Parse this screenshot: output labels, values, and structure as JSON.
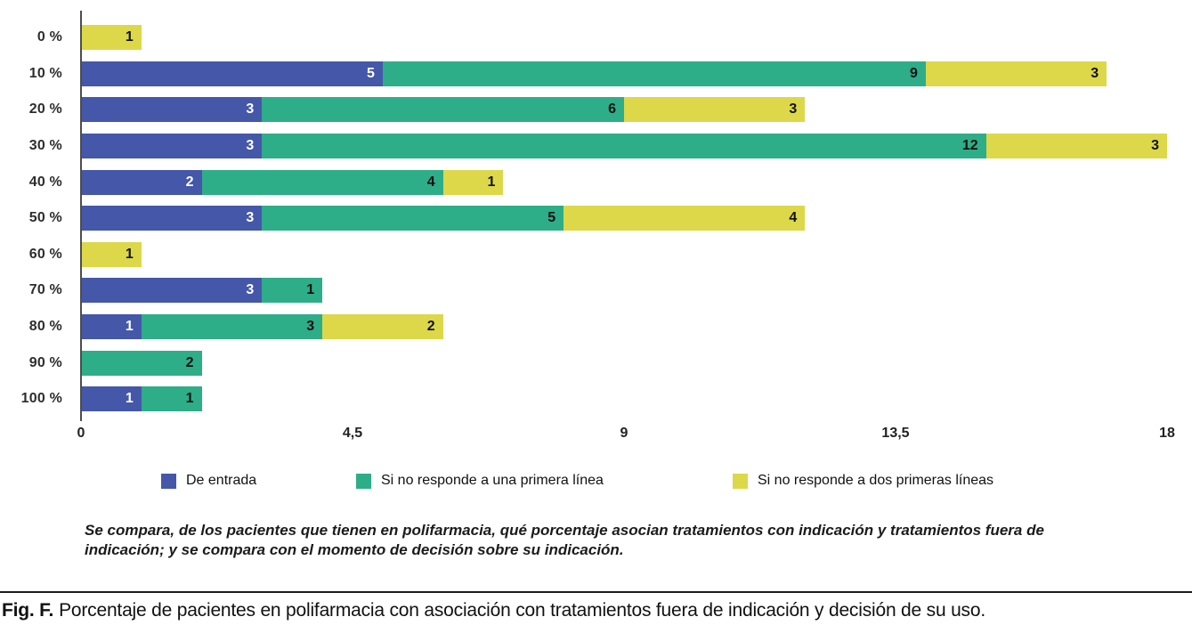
{
  "chart_data": {
    "type": "bar",
    "orientation": "horizontal",
    "stacked": true,
    "title": "",
    "xlabel": "",
    "ylabel": "",
    "categories": [
      "0 %",
      "10 %",
      "20 %",
      "30 %",
      "40 %",
      "50 %",
      "60 %",
      "70 %",
      "80 %",
      "90 %",
      "100 %"
    ],
    "series": [
      {
        "name": "De entrada",
        "color": "#4557a9",
        "label_color": "#ffffff",
        "values": [
          0,
          5,
          3,
          3,
          2,
          3,
          0,
          3,
          1,
          0,
          1
        ]
      },
      {
        "name": "Si no responde a una primera línea",
        "color": "#2ead89",
        "label_color": "#10100e",
        "values": [
          0,
          9,
          6,
          12,
          4,
          5,
          0,
          1,
          3,
          2,
          1
        ]
      },
      {
        "name": "Si no responde a dos primeras líneas",
        "color": "#dcd84a",
        "label_color": "#10100e",
        "values": [
          1,
          3,
          3,
          3,
          1,
          4,
          1,
          0,
          2,
          0,
          0
        ]
      }
    ],
    "x_ticks": [
      "0",
      "4,5",
      "9",
      "13,5",
      "18"
    ],
    "x_tick_values": [
      0,
      4.5,
      9,
      13.5,
      18
    ],
    "xlim": [
      0,
      18
    ],
    "grid": false,
    "legend_position": "bottom"
  },
  "footnote": "Se compara, de los pacientes que tienen en polifarmacia, qué porcentaje asocian tratamientos con indicación y tratamientos fuera de indicación; y se compara con el momento de decisión sobre su indicación.",
  "caption": {
    "prefix": "Fig. F.",
    "text": "Porcentaje de pacientes en polifarmacia con asociación con tratamientos fuera de indicación y decisión de su uso."
  }
}
